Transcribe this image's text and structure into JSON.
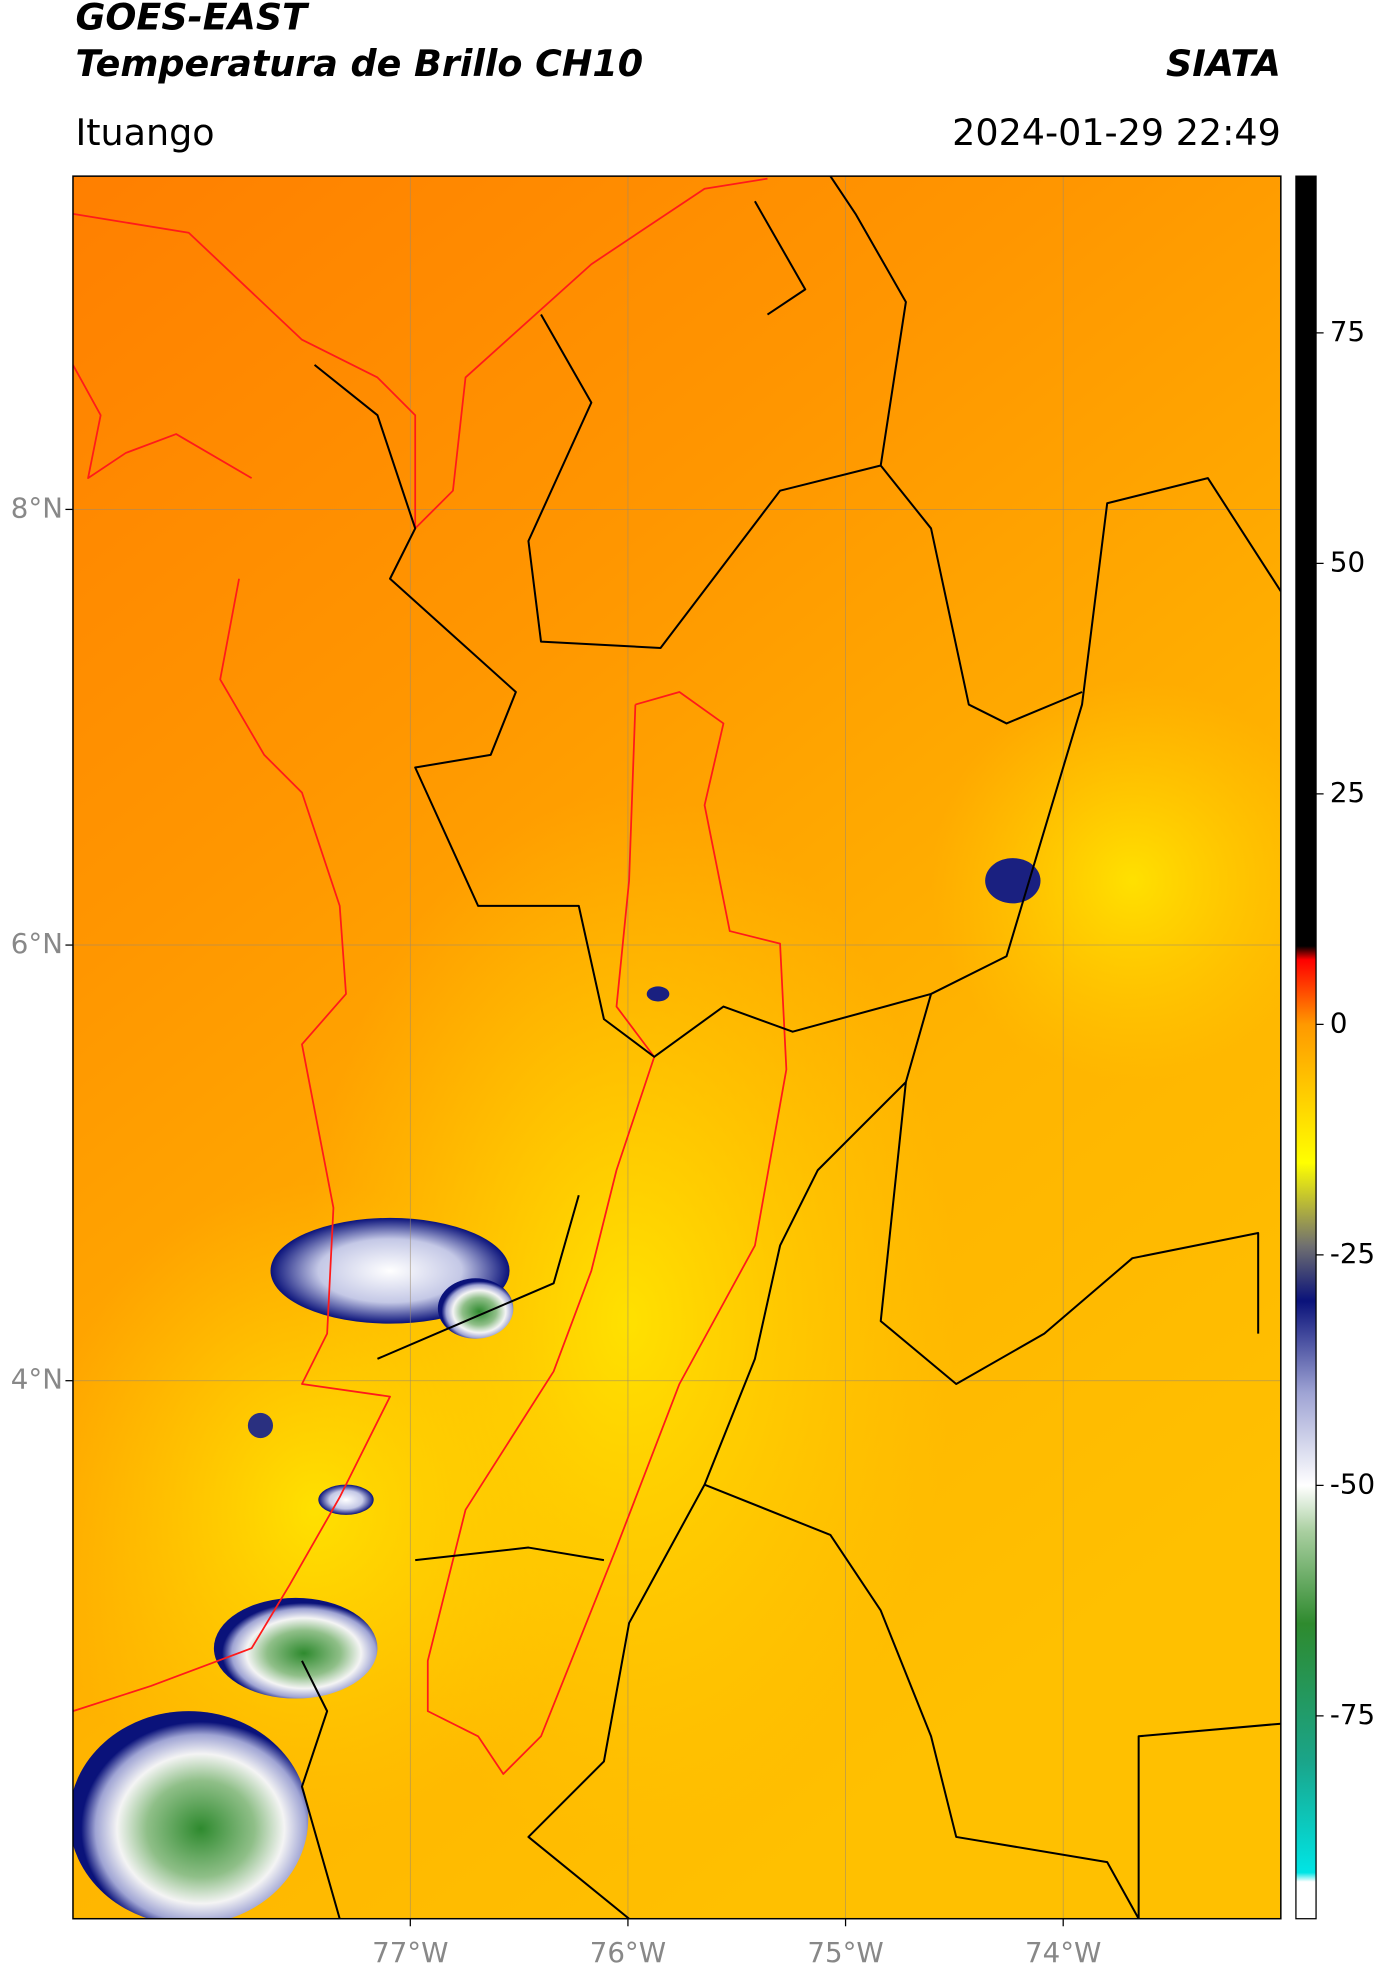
{
  "chart_data": {
    "type": "map",
    "title": "GOES-EAST",
    "subtitle": "Temperatura de Brillo CH10",
    "source": "SIATA",
    "location": "Ituango",
    "timestamp": "2024-01-29 22:49",
    "xlim": [
      -78.55,
      -73.0
    ],
    "ylim": [
      1.53,
      9.53
    ],
    "xticks": [
      {
        "value": -77,
        "label": "77°W"
      },
      {
        "value": -76,
        "label": "76°W"
      },
      {
        "value": -75,
        "label": "75°W"
      },
      {
        "value": -74,
        "label": "74°W"
      }
    ],
    "yticks": [
      {
        "value": 4,
        "label": "4°N"
      },
      {
        "value": 6,
        "label": "6°N"
      },
      {
        "value": 8,
        "label": "8°N"
      }
    ],
    "grid": true,
    "colorbar": {
      "lim": [
        -97,
        92
      ],
      "ticks": [
        -75,
        -50,
        -25,
        0,
        25,
        50,
        75
      ],
      "colormap": [
        {
          "value": -97,
          "color": "#ffffff"
        },
        {
          "value": -93,
          "color": "#ffffff"
        },
        {
          "value": -92,
          "color": "#00e5e5"
        },
        {
          "value": -80,
          "color": "#1aa58a"
        },
        {
          "value": -65,
          "color": "#2e8a2e"
        },
        {
          "value": -55,
          "color": "#a9cfa0"
        },
        {
          "value": -50,
          "color": "#ffffff"
        },
        {
          "value": -40,
          "color": "#9fa4d4"
        },
        {
          "value": -30,
          "color": "#0a127a"
        },
        {
          "value": -24,
          "color": "#707070"
        },
        {
          "value": -15,
          "color": "#ffff00"
        },
        {
          "value": 0,
          "color": "#ff9900"
        },
        {
          "value": 7,
          "color": "#ff0000"
        },
        {
          "value": 8.5,
          "color": "#000000"
        },
        {
          "value": 92,
          "color": "#000000"
        }
      ]
    }
  }
}
